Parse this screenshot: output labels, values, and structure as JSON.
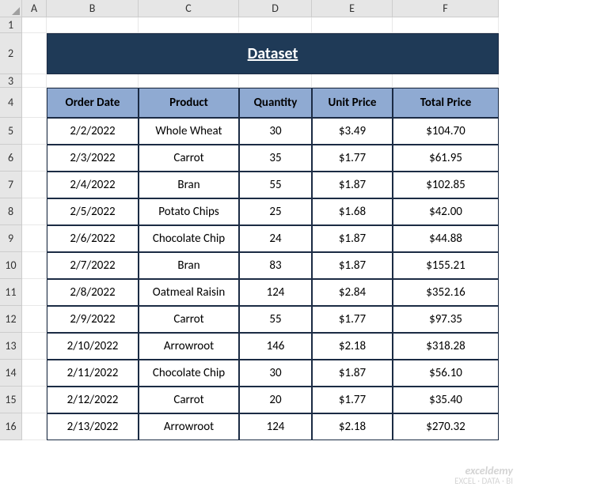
{
  "colors": {
    "title_bg": "#1f3a57",
    "title_fg": "#ffffff",
    "header_bg": "#8faad2",
    "header_fg": "#000000",
    "cell_bg": "#ffffff",
    "cell_fg": "#000000",
    "border": "#1b2b44"
  },
  "column_letters": [
    "A",
    "B",
    "C",
    "D",
    "E",
    "F"
  ],
  "row_numbers": [
    "1",
    "2",
    "3",
    "4",
    "5",
    "6",
    "7",
    "8",
    "9",
    "10",
    "11",
    "12",
    "13",
    "14",
    "15",
    "16"
  ],
  "row_heights": {
    "header": 22,
    "r1": 20,
    "r2": 52,
    "r3": 17,
    "r4": 38,
    "data": 34
  },
  "column_widths": {
    "rowhdr": 28,
    "A": 31,
    "B": 116,
    "C": 127,
    "D": 92,
    "E": 102,
    "F": 134
  },
  "title": "Dataset",
  "headers": [
    "Order Date",
    "Product",
    "Quantity",
    "Unit Price",
    "Total Price"
  ],
  "rows": [
    [
      "2/2/2022",
      "Whole Wheat",
      "30",
      "$3.49",
      "$104.70"
    ],
    [
      "2/3/2022",
      "Carrot",
      "35",
      "$1.77",
      "$61.95"
    ],
    [
      "2/4/2022",
      "Bran",
      "55",
      "$1.87",
      "$102.85"
    ],
    [
      "2/5/2022",
      "Potato Chips",
      "25",
      "$1.68",
      "$42.00"
    ],
    [
      "2/6/2022",
      "Chocolate Chip",
      "24",
      "$1.87",
      "$44.88"
    ],
    [
      "2/7/2022",
      "Bran",
      "83",
      "$1.87",
      "$155.21"
    ],
    [
      "2/8/2022",
      "Oatmeal Raisin",
      "124",
      "$2.84",
      "$352.16"
    ],
    [
      "2/9/2022",
      "Carrot",
      "55",
      "$1.77",
      "$97.35"
    ],
    [
      "2/10/2022",
      "Arrowroot",
      "146",
      "$2.18",
      "$318.28"
    ],
    [
      "2/11/2022",
      "Chocolate Chip",
      "30",
      "$1.87",
      "$56.10"
    ],
    [
      "2/12/2022",
      "Carrot",
      "20",
      "$1.77",
      "$35.40"
    ],
    [
      "2/13/2022",
      "Arrowroot",
      "124",
      "$2.18",
      "$270.32"
    ]
  ],
  "watermark": {
    "line1": "exceldemy",
    "line2": "EXCEL · DATA · BI"
  }
}
